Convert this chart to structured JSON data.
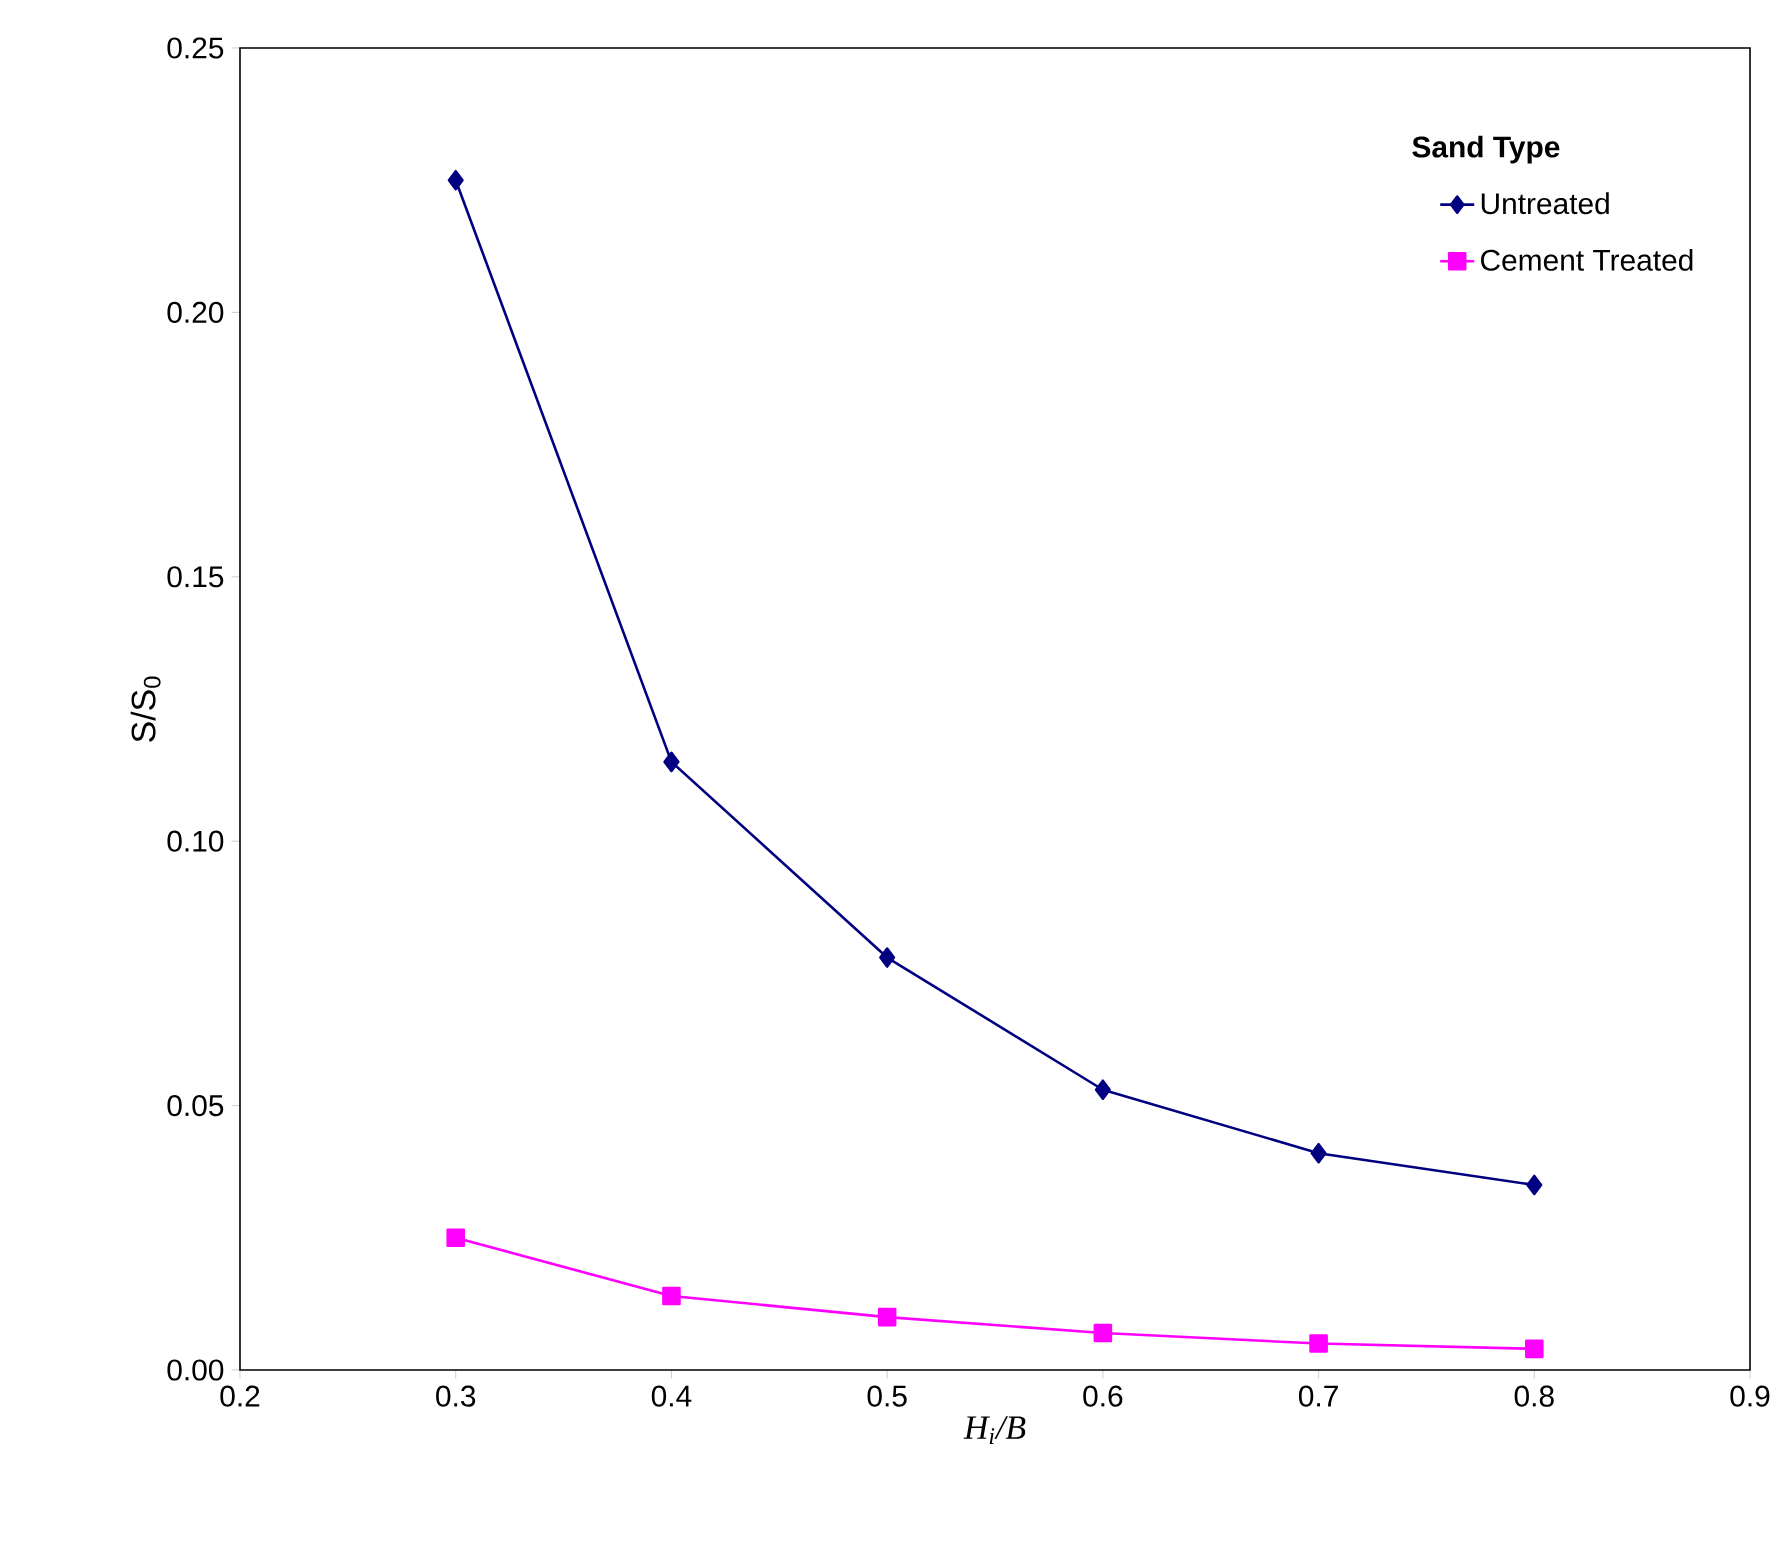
{
  "chart_data": {
    "type": "line",
    "xlabel": "H$_{i}$/B",
    "ylabel": "S/S$_{0}$",
    "legend_title": "Sand Type",
    "legend": "top right",
    "grid": false,
    "x": [
      0.3,
      0.4,
      0.5,
      0.6,
      0.7,
      0.8
    ],
    "series": [
      {
        "name": "Untreated",
        "color": "#000080",
        "marker": "diamond",
        "values": [
          0.225,
          0.115,
          0.078,
          0.053,
          0.041,
          0.035
        ]
      },
      {
        "name": "Cement Treated",
        "color": "#ff00ff",
        "marker": "square",
        "values": [
          0.025,
          0.014,
          0.01,
          0.007,
          0.005,
          0.004
        ]
      }
    ],
    "xlim": [
      0.2,
      0.9
    ],
    "xticks": [
      0.2,
      0.3,
      0.4,
      0.5,
      0.6,
      0.7,
      0.8,
      0.9
    ],
    "ylim": [
      0,
      0.25
    ],
    "yticks": [
      {
        "value": 0,
        "label": "0.00"
      },
      {
        "value": 0.05,
        "label": "0.05"
      },
      {
        "value": 0.1,
        "label": "0.10"
      },
      {
        "value": 0.15,
        "label": "0.15"
      },
      {
        "value": 0.2,
        "label": "0.20"
      },
      {
        "value": 0.25,
        "label": "0.25"
      }
    ]
  }
}
